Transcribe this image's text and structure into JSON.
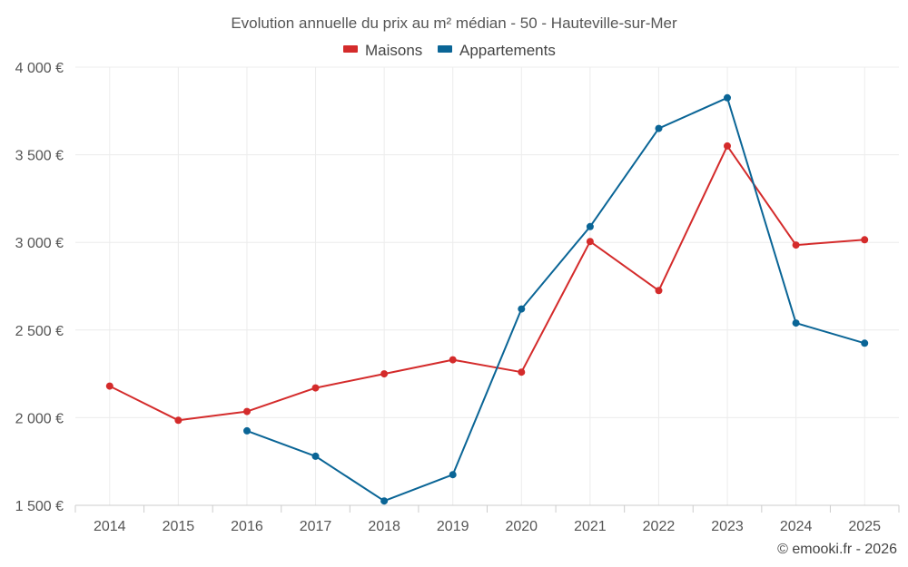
{
  "chart_data": {
    "type": "line",
    "title": "Evolution annuelle du prix au m² médian - 50 - Hauteville-sur-Mer",
    "categories": [
      "2014",
      "2015",
      "2016",
      "2017",
      "2018",
      "2019",
      "2020",
      "2021",
      "2022",
      "2023",
      "2024",
      "2025"
    ],
    "series": [
      {
        "name": "Maisons",
        "color": "#d42b2b",
        "values": [
          2180,
          1985,
          2035,
          2170,
          2250,
          2330,
          2260,
          3005,
          2725,
          3550,
          2985,
          3015
        ]
      },
      {
        "name": "Appartements",
        "color": "#0a6596",
        "values": [
          null,
          null,
          1925,
          1780,
          1525,
          1675,
          2620,
          3090,
          3650,
          3825,
          2540,
          2425
        ]
      }
    ],
    "ylim": [
      1500,
      4000
    ],
    "yticks": [
      1500,
      2000,
      2500,
      3000,
      3500,
      4000
    ],
    "ytick_labels": [
      "1 500 €",
      "2 000 €",
      "2 500 €",
      "3 000 €",
      "3 500 €",
      "4 000 €"
    ],
    "xlabel": "",
    "ylabel": "",
    "grid": true,
    "legend_position": "top-center"
  },
  "credit": "© emooki.fr - 2026"
}
